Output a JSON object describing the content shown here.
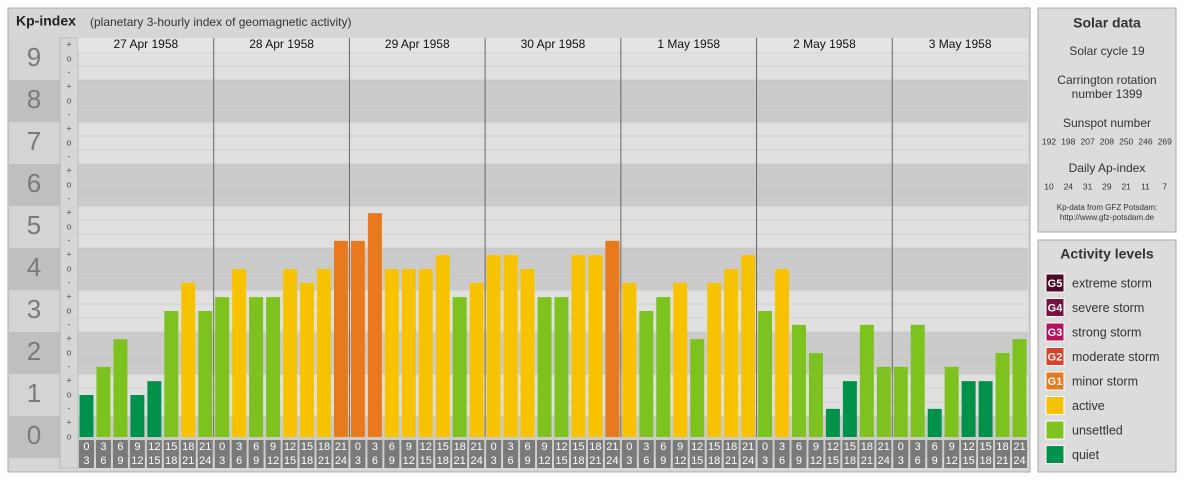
{
  "chart_data": {
    "type": "bar",
    "title": "Kp-index",
    "subtitle": "(planetary 3-hourly index of geomagnetic activity)",
    "days": [
      "27 Apr 1958",
      "28 Apr 1958",
      "29 Apr 1958",
      "30 Apr 1958",
      "1 May 1958",
      "2 May 1958",
      "3 May 1958"
    ],
    "hours_start": [
      "0",
      "3",
      "6",
      "9",
      "12",
      "15",
      "18",
      "21"
    ],
    "hours_end": [
      "3",
      "6",
      "9",
      "12",
      "15",
      "18",
      "21",
      "24"
    ],
    "values": [
      1,
      1.67,
      2.33,
      1,
      1.33,
      3,
      3.67,
      3,
      3.33,
      4,
      3.33,
      3.33,
      4,
      3.67,
      4,
      4.67,
      4.67,
      5.33,
      4,
      4,
      4,
      4.33,
      3.33,
      3.67,
      4.33,
      4.33,
      4,
      3.33,
      3.33,
      4.33,
      4.33,
      4.67,
      3.67,
      3,
      3.33,
      3.67,
      2.33,
      3.67,
      4,
      4.33,
      3,
      4,
      2.67,
      2,
      0.67,
      1.33,
      2.67,
      1.67,
      1.67,
      2.67,
      0.67,
      1.67,
      1.33,
      1.33,
      2,
      2.33
    ],
    "colors": [
      "#00924a",
      "#7dc21e",
      "#7dc21e",
      "#00924a",
      "#00924a",
      "#7dc21e",
      "#f7c300",
      "#7dc21e",
      "#7dc21e",
      "#f7c300",
      "#7dc21e",
      "#7dc21e",
      "#f7c300",
      "#f7c300",
      "#f7c300",
      "#e8791c",
      "#e8791c",
      "#e8791c",
      "#f7c300",
      "#f7c300",
      "#f7c300",
      "#f7c300",
      "#7dc21e",
      "#f7c300",
      "#f7c300",
      "#f7c300",
      "#f7c300",
      "#7dc21e",
      "#7dc21e",
      "#f7c300",
      "#f7c300",
      "#e8791c",
      "#f7c300",
      "#7dc21e",
      "#7dc21e",
      "#f7c300",
      "#7dc21e",
      "#f7c300",
      "#f7c300",
      "#f7c300",
      "#7dc21e",
      "#f7c300",
      "#7dc21e",
      "#7dc21e",
      "#00924a",
      "#00924a",
      "#7dc21e",
      "#7dc21e",
      "#7dc21e",
      "#7dc21e",
      "#00924a",
      "#7dc21e",
      "#00924a",
      "#00924a",
      "#7dc21e",
      "#7dc21e"
    ],
    "ylim": [
      0,
      9.5
    ],
    "yticks": [
      0,
      1,
      2,
      3,
      4,
      5,
      6,
      7,
      8,
      9
    ],
    "subticks": [
      "-",
      "o",
      "+"
    ]
  },
  "solar_data": {
    "title": "Solar data",
    "cycle": "Solar cycle 19",
    "carrington": [
      "Carrington rotation",
      "number 1399"
    ],
    "sunspot_title": "Sunspot number",
    "sunspot": [
      192,
      198,
      207,
      208,
      250,
      246,
      269
    ],
    "ap_title": "Daily Ap-index",
    "ap": [
      10,
      24,
      31,
      29,
      21,
      11,
      7
    ],
    "source": [
      "Kp-data from GFZ Potsdam:",
      "http://www.gfz-potsdam.de"
    ]
  },
  "activity_levels": {
    "title": "Activity levels",
    "items": [
      {
        "badge": "G5",
        "name": "extreme storm",
        "color": "#4a0a25"
      },
      {
        "badge": "G4",
        "name": "severe storm",
        "color": "#7a1040"
      },
      {
        "badge": "G3",
        "name": "strong storm",
        "color": "#b8105a"
      },
      {
        "badge": "G2",
        "name": "moderate storm",
        "color": "#d8402a"
      },
      {
        "badge": "G1",
        "name": "minor storm",
        "color": "#e8791c"
      },
      {
        "name": "active",
        "color": "#f7c300"
      },
      {
        "name": "unsettled",
        "color": "#7dc21e"
      },
      {
        "name": "quiet",
        "color": "#00924a"
      }
    ]
  }
}
